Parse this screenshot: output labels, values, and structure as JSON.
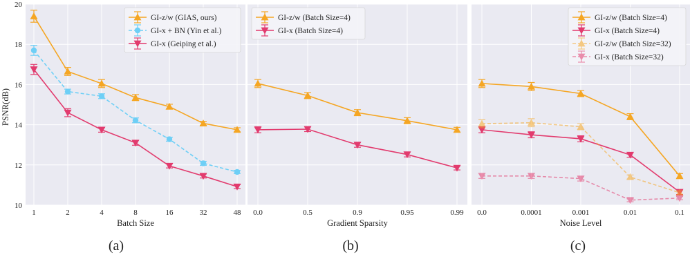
{
  "figure": {
    "ylabel": "PSNR(dB)",
    "panel_labels": [
      "(a)",
      "(b)",
      "(c)"
    ]
  },
  "chart_data": [
    {
      "type": "line",
      "panel_label": "(a)",
      "xlabel": "Batch Size",
      "ylabel": "PSNR(dB)",
      "categories": [
        "1",
        "2",
        "4",
        "8",
        "16",
        "32",
        "48"
      ],
      "ylim": [
        10,
        20
      ],
      "yticks": [
        10,
        12,
        14,
        16,
        18,
        20
      ],
      "grid": true,
      "legend_position": "top-right",
      "series": [
        {
          "name": "GI-z/w (GIAS, ours)",
          "color": "#f5a623",
          "dashed": false,
          "marker": "triangle-up",
          "alpha": 1,
          "values": [
            19.4,
            16.65,
            16.05,
            15.35,
            14.9,
            14.07,
            13.75
          ],
          "errors": [
            0.3,
            0.2,
            0.2,
            0.15,
            0.12,
            0.1,
            0.1
          ]
        },
        {
          "name": "GI-x + BN (Yin et al.)",
          "color": "#6ecff6",
          "dashed": true,
          "marker": "circle",
          "alpha": 1,
          "values": [
            17.7,
            15.65,
            15.42,
            14.22,
            13.28,
            12.08,
            11.65
          ],
          "errors": [
            0.25,
            0.12,
            0.12,
            0.12,
            0.1,
            0.1,
            0.08
          ]
        },
        {
          "name": "GI-x (Geiping et al.)",
          "color": "#e23b6e",
          "dashed": false,
          "marker": "triangle-down",
          "alpha": 1,
          "values": [
            16.75,
            14.6,
            13.75,
            13.1,
            11.95,
            11.45,
            10.92
          ],
          "errors": [
            0.25,
            0.2,
            0.12,
            0.12,
            0.1,
            0.1,
            0.1
          ]
        }
      ]
    },
    {
      "type": "line",
      "panel_label": "(b)",
      "xlabel": "Gradient Sparsity",
      "categories": [
        "0.0",
        "0.5",
        "0.9",
        "0.95",
        "0.99"
      ],
      "ylim": [
        10,
        20
      ],
      "grid": true,
      "legend_position": "top-left",
      "series": [
        {
          "name": "GI-z/w (Batch Size=4)",
          "color": "#f5a623",
          "dashed": false,
          "marker": "triangle-up",
          "alpha": 1,
          "values": [
            16.05,
            15.45,
            14.6,
            14.2,
            13.75
          ],
          "errors": [
            0.2,
            0.15,
            0.15,
            0.15,
            0.12
          ]
        },
        {
          "name": "GI-x (Batch Size=4)",
          "color": "#e23b6e",
          "dashed": false,
          "marker": "triangle-down",
          "alpha": 1,
          "values": [
            13.75,
            13.78,
            13.0,
            12.52,
            11.85
          ],
          "errors": [
            0.15,
            0.12,
            0.12,
            0.12,
            0.1
          ]
        }
      ]
    },
    {
      "type": "line",
      "panel_label": "(c)",
      "xlabel": "Noise Level",
      "categories": [
        "0.0",
        "0.0001",
        "0.001",
        "0.01",
        "0.1"
      ],
      "ylim": [
        10,
        20
      ],
      "grid": true,
      "legend_position": "top-right",
      "series": [
        {
          "name": "GI-z/w (Batch Size=4)",
          "color": "#f5a623",
          "dashed": false,
          "marker": "triangle-up",
          "alpha": 1,
          "values": [
            16.05,
            15.9,
            15.55,
            14.4,
            11.45
          ],
          "errors": [
            0.2,
            0.2,
            0.15,
            0.15,
            0.12
          ]
        },
        {
          "name": "GI-x (Batch Size=4)",
          "color": "#e23b6e",
          "dashed": false,
          "marker": "triangle-down",
          "alpha": 1,
          "values": [
            13.75,
            13.5,
            13.3,
            12.5,
            10.65
          ],
          "errors": [
            0.15,
            0.15,
            0.15,
            0.12,
            0.12
          ]
        },
        {
          "name": "GI-z/w (Batch Size=32)",
          "color": "#f5a623",
          "dashed": true,
          "marker": "triangle-up",
          "alpha": 0.55,
          "values": [
            14.05,
            14.1,
            13.9,
            11.4,
            10.62
          ],
          "errors": [
            0.2,
            0.2,
            0.15,
            0.1,
            0.1
          ]
        },
        {
          "name": "GI-x (Batch Size=32)",
          "color": "#e23b6e",
          "dashed": true,
          "marker": "triangle-down",
          "alpha": 0.55,
          "values": [
            11.45,
            11.45,
            11.32,
            10.25,
            10.35
          ],
          "errors": [
            0.12,
            0.12,
            0.12,
            0.08,
            0.08
          ]
        }
      ]
    }
  ]
}
